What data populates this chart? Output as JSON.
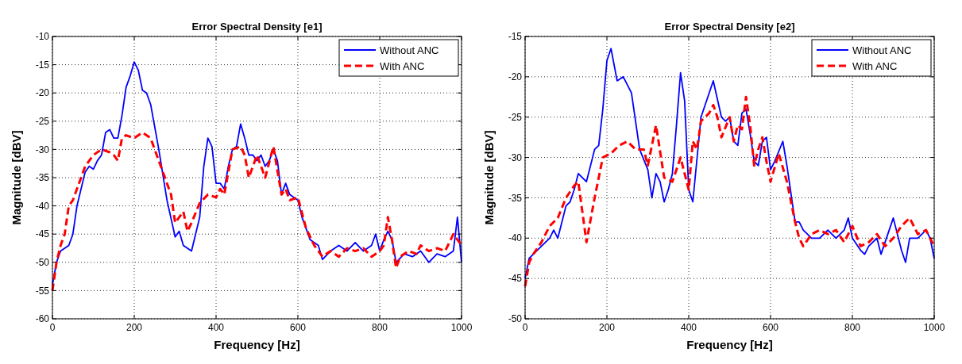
{
  "chart_data": [
    {
      "type": "line",
      "title": "Error Spectral Density [e1]",
      "xlabel": "Frequency [Hz]",
      "ylabel": "Magnitude [dBV]",
      "xlim": [
        0,
        1000
      ],
      "xticks": [
        0,
        200,
        400,
        600,
        800,
        1000
      ],
      "ylim": [
        -60,
        -10
      ],
      "yticks": [
        -60,
        -55,
        -50,
        -45,
        -40,
        -35,
        -30,
        -25,
        -20,
        -15,
        -10
      ],
      "grid": true,
      "legend": "top right",
      "series": [
        {
          "name": "Without ANC",
          "color": "#0000ff",
          "line_style": "solid",
          "x": [
            0,
            10,
            20,
            40,
            50,
            60,
            80,
            90,
            100,
            110,
            120,
            130,
            140,
            150,
            160,
            170,
            180,
            190,
            200,
            210,
            220,
            230,
            240,
            260,
            280,
            300,
            310,
            320,
            340,
            360,
            370,
            380,
            390,
            400,
            410,
            420,
            430,
            440,
            450,
            460,
            470,
            480,
            490,
            500,
            510,
            520,
            530,
            540,
            550,
            560,
            570,
            580,
            600,
            610,
            630,
            650,
            660,
            680,
            700,
            720,
            740,
            760,
            780,
            790,
            800,
            810,
            820,
            830,
            840,
            860,
            880,
            900,
            920,
            940,
            960,
            980,
            990,
            1000
          ],
          "values": [
            -54,
            -50,
            -48,
            -47,
            -45,
            -40,
            -34,
            -33,
            -33.5,
            -32,
            -31,
            -27,
            -26.5,
            -28,
            -28,
            -24,
            -19,
            -17,
            -14.5,
            -16,
            -19.5,
            -20,
            -22,
            -30,
            -39,
            -45.5,
            -44.5,
            -47,
            -48,
            -42,
            -33,
            -28,
            -29.5,
            -36,
            -36,
            -37,
            -33,
            -30,
            -29.5,
            -25.5,
            -28,
            -31,
            -31,
            -32,
            -31,
            -33,
            -32,
            -30,
            -32,
            -38,
            -36,
            -38,
            -39,
            -42,
            -46,
            -47,
            -49.5,
            -48,
            -47,
            -48,
            -46.5,
            -48,
            -47,
            -45,
            -48,
            -46,
            -44.5,
            -46,
            -50,
            -48.5,
            -49,
            -48,
            -50,
            -48.5,
            -49,
            -48,
            -42,
            -50
          ]
        },
        {
          "name": "With ANC",
          "color": "#ff0000",
          "line_style": "dashed",
          "x": [
            0,
            10,
            20,
            30,
            40,
            50,
            70,
            80,
            100,
            120,
            140,
            150,
            160,
            170,
            180,
            200,
            220,
            240,
            250,
            270,
            290,
            300,
            310,
            320,
            330,
            340,
            360,
            380,
            400,
            410,
            420,
            440,
            460,
            470,
            480,
            500,
            520,
            540,
            560,
            570,
            580,
            600,
            620,
            640,
            660,
            680,
            700,
            720,
            740,
            760,
            780,
            800,
            810,
            820,
            830,
            840,
            850,
            870,
            890,
            900,
            920,
            940,
            960,
            980,
            1000
          ],
          "values": [
            -55,
            -50,
            -47,
            -45,
            -40,
            -39,
            -35,
            -33,
            -31,
            -30,
            -30.5,
            -31,
            -32,
            -28,
            -27.5,
            -28,
            -27,
            -28,
            -30,
            -34,
            -38,
            -43,
            -42,
            -41,
            -44.5,
            -43,
            -39.5,
            -38,
            -38.5,
            -37,
            -38,
            -30,
            -29.5,
            -31,
            -35,
            -31,
            -35,
            -29.5,
            -38,
            -37,
            -39,
            -38.5,
            -44,
            -47,
            -49,
            -48,
            -49,
            -47.5,
            -48,
            -47.5,
            -49,
            -48,
            -47,
            -42,
            -46,
            -51,
            -49,
            -48,
            -48.5,
            -47,
            -48,
            -47.5,
            -48,
            -45,
            -47
          ]
        }
      ]
    },
    {
      "type": "line",
      "title": "Error Spectral Density [e2]",
      "xlabel": "Frequency [Hz]",
      "ylabel": "Magnitude [dBV]",
      "xlim": [
        0,
        1000
      ],
      "xticks": [
        0,
        200,
        400,
        600,
        800,
        1000
      ],
      "ylim": [
        -50,
        -15
      ],
      "yticks": [
        -50,
        -45,
        -40,
        -35,
        -30,
        -25,
        -20,
        -15
      ],
      "grid": true,
      "legend": "top right",
      "series": [
        {
          "name": "Without ANC",
          "color": "#0000ff",
          "line_style": "solid",
          "x": [
            0,
            10,
            20,
            40,
            60,
            70,
            80,
            90,
            100,
            110,
            120,
            130,
            150,
            170,
            180,
            190,
            200,
            210,
            225,
            240,
            260,
            280,
            300,
            310,
            320,
            330,
            340,
            350,
            360,
            370,
            380,
            390,
            400,
            410,
            430,
            450,
            460,
            480,
            490,
            500,
            510,
            520,
            530,
            540,
            550,
            560,
            570,
            580,
            590,
            600,
            610,
            630,
            640,
            660,
            670,
            680,
            690,
            700,
            720,
            740,
            760,
            780,
            790,
            800,
            820,
            830,
            840,
            860,
            870,
            880,
            900,
            920,
            930,
            940,
            960,
            980,
            990,
            1000
          ],
          "values": [
            -45,
            -42.5,
            -42,
            -41,
            -40,
            -39,
            -40,
            -38,
            -36,
            -35.5,
            -34,
            -32,
            -33,
            -29,
            -28.5,
            -24,
            -18,
            -16.5,
            -20.5,
            -20,
            -22,
            -29,
            -31.5,
            -35,
            -32,
            -33,
            -35.5,
            -34,
            -32,
            -26,
            -19.5,
            -23,
            -34,
            -35.5,
            -25,
            -22,
            -20.5,
            -25,
            -25.5,
            -25,
            -28,
            -28.5,
            -24.5,
            -24,
            -27,
            -30.5,
            -31,
            -28,
            -27.5,
            -31.5,
            -30.5,
            -28,
            -31,
            -38,
            -38,
            -39,
            -39.5,
            -40,
            -40,
            -39,
            -40,
            -39,
            -37.5,
            -40,
            -41.5,
            -42,
            -41,
            -40,
            -42,
            -40.5,
            -37.5,
            -41.5,
            -43,
            -40,
            -40,
            -39,
            -40,
            -42.5
          ]
        },
        {
          "name": "With ANC",
          "color": "#ff0000",
          "line_style": "dashed",
          "x": [
            0,
            10,
            20,
            40,
            60,
            80,
            100,
            120,
            130,
            150,
            170,
            190,
            210,
            230,
            250,
            270,
            290,
            300,
            320,
            340,
            360,
            380,
            390,
            400,
            410,
            420,
            430,
            450,
            460,
            470,
            480,
            500,
            510,
            520,
            530,
            540,
            550,
            560,
            570,
            580,
            590,
            600,
            620,
            640,
            660,
            670,
            680,
            700,
            720,
            740,
            760,
            780,
            800,
            820,
            840,
            860,
            880,
            900,
            920,
            940,
            960,
            980,
            1000
          ],
          "values": [
            -46,
            -43,
            -42,
            -40.5,
            -38.5,
            -37.5,
            -35,
            -33.5,
            -33,
            -40.5,
            -35,
            -30,
            -29.5,
            -28.5,
            -28,
            -29,
            -29,
            -31,
            -26,
            -32.5,
            -33,
            -30,
            -32,
            -34,
            -28,
            -29,
            -25.5,
            -24.5,
            -23.5,
            -25,
            -27.5,
            -25,
            -28,
            -26,
            -26.5,
            -22.5,
            -26,
            -31,
            -29,
            -27.5,
            -30.5,
            -33,
            -29.5,
            -33,
            -38,
            -40,
            -41,
            -39.5,
            -39,
            -39.5,
            -39,
            -40.5,
            -38.5,
            -41,
            -40.5,
            -39.5,
            -41,
            -40,
            -38.5,
            -37.5,
            -39.5,
            -39,
            -41
          ]
        }
      ]
    }
  ]
}
